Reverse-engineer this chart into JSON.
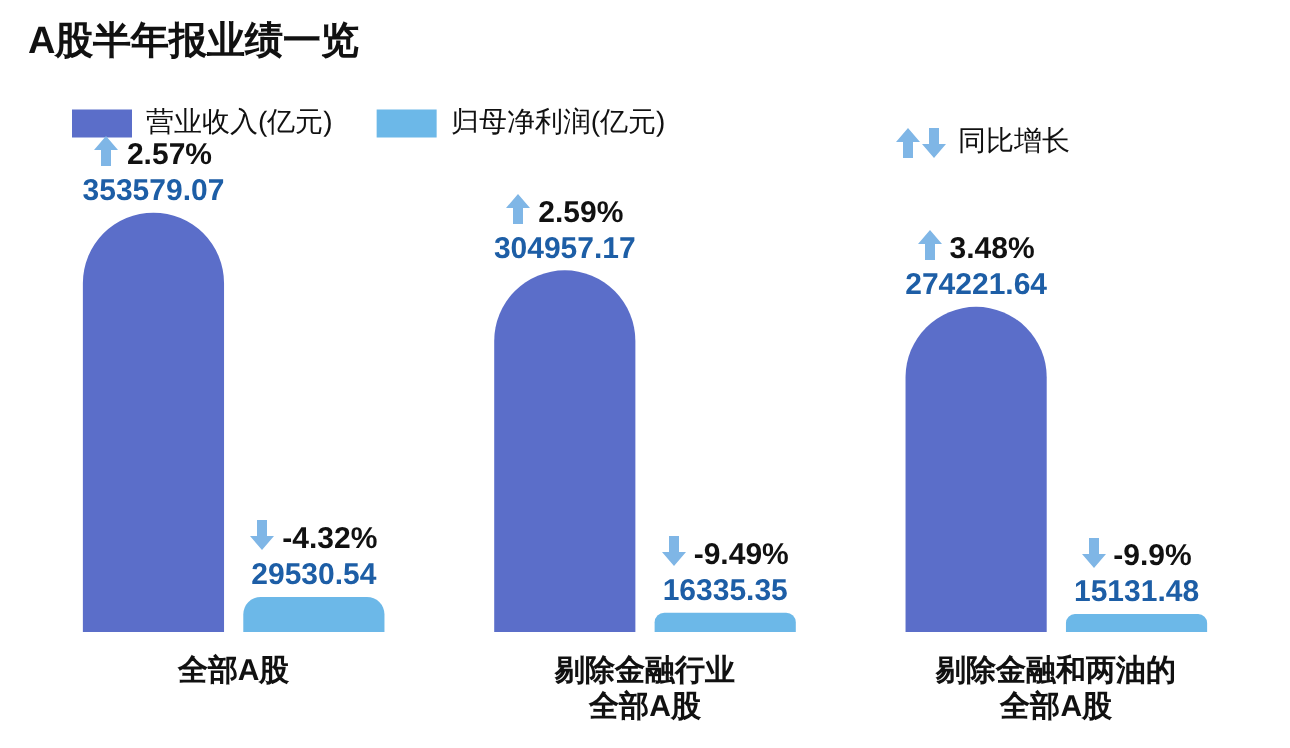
{
  "chart_data": {
    "type": "bar",
    "title": "A股半年报业绩一览",
    "categories": [
      "全部A股",
      "剔除金融行业全部A股",
      "剔除金融和两油的全部A股"
    ],
    "series": [
      {
        "name": "营业收入(亿元)",
        "color": "#5b6ec9",
        "values": [
          353579.07,
          304957.17,
          274221.64
        ]
      },
      {
        "name": "归母净利润(亿元)",
        "color": "#6cb8e8",
        "values": [
          29530.54,
          16335.35,
          15131.48
        ]
      }
    ],
    "data_labels": true,
    "tick_labels": "x",
    "legend": "top left",
    "grid": false,
    "annotations": [
      "同比增长",
      "2.57%",
      "-4.32%",
      "2.59%",
      "-9.49%",
      "3.48%",
      "-9.9%"
    ]
  }
}
